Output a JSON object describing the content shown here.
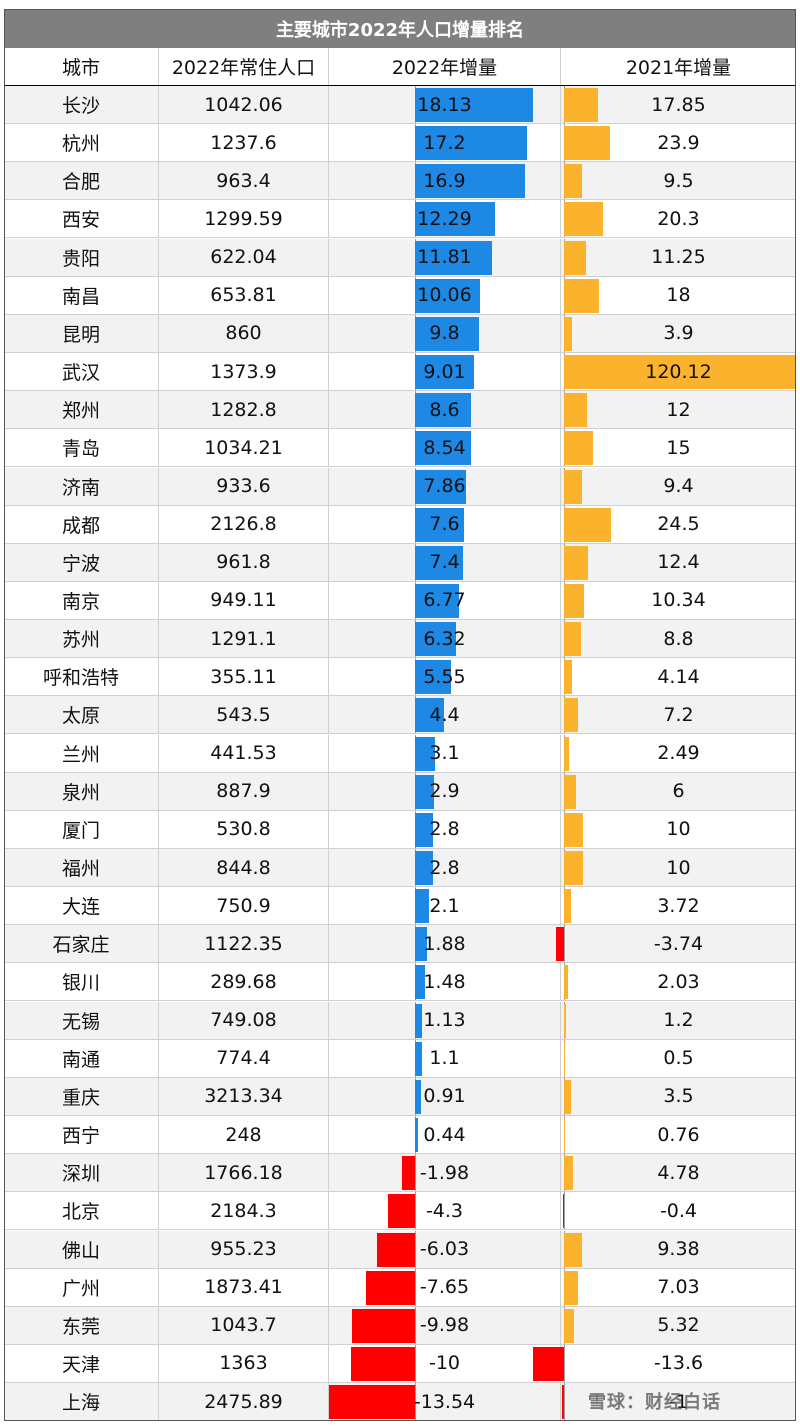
{
  "title": "主要城市2022年人口增量排名",
  "headers": {
    "city": "城市",
    "pop2022": "2022年常住人口",
    "g2022": "2022年增量",
    "g2021": "2021年增量"
  },
  "watermark": "雪球：财经白话",
  "colors": {
    "header_bg": "#7f7f7f",
    "positive_2022": "#1e88e5",
    "positive_2021": "#fbb22c",
    "negative": "#ff0000",
    "alt_row": "#f2f2f2"
  },
  "chart_data": {
    "type": "table",
    "title": "主要城市2022年人口增量排名",
    "columns": [
      "城市",
      "2022年常住人口",
      "2022年增量",
      "2021年增量"
    ],
    "rows": [
      {
        "city": "长沙",
        "pop2022": "1042.06",
        "g2022": "18.13",
        "g2021": "17.85"
      },
      {
        "city": "杭州",
        "pop2022": "1237.6",
        "g2022": "17.2",
        "g2021": "23.9"
      },
      {
        "city": "合肥",
        "pop2022": "963.4",
        "g2022": "16.9",
        "g2021": "9.5"
      },
      {
        "city": "西安",
        "pop2022": "1299.59",
        "g2022": "12.29",
        "g2021": "20.3"
      },
      {
        "city": "贵阳",
        "pop2022": "622.04",
        "g2022": "11.81",
        "g2021": "11.25"
      },
      {
        "city": "南昌",
        "pop2022": "653.81",
        "g2022": "10.06",
        "g2021": "18"
      },
      {
        "city": "昆明",
        "pop2022": "860",
        "g2022": "9.8",
        "g2021": "3.9"
      },
      {
        "city": "武汉",
        "pop2022": "1373.9",
        "g2022": "9.01",
        "g2021": "120.12"
      },
      {
        "city": "郑州",
        "pop2022": "1282.8",
        "g2022": "8.6",
        "g2021": "12"
      },
      {
        "city": "青岛",
        "pop2022": "1034.21",
        "g2022": "8.54",
        "g2021": "15"
      },
      {
        "city": "济南",
        "pop2022": "933.6",
        "g2022": "7.86",
        "g2021": "9.4"
      },
      {
        "city": "成都",
        "pop2022": "2126.8",
        "g2022": "7.6",
        "g2021": "24.5"
      },
      {
        "city": "宁波",
        "pop2022": "961.8",
        "g2022": "7.4",
        "g2021": "12.4"
      },
      {
        "city": "南京",
        "pop2022": "949.11",
        "g2022": "6.77",
        "g2021": "10.34"
      },
      {
        "city": "苏州",
        "pop2022": "1291.1",
        "g2022": "6.32",
        "g2021": "8.8"
      },
      {
        "city": "呼和浩特",
        "pop2022": "355.11",
        "g2022": "5.55",
        "g2021": "4.14"
      },
      {
        "city": "太原",
        "pop2022": "543.5",
        "g2022": "4.4",
        "g2021": "7.2"
      },
      {
        "city": "兰州",
        "pop2022": "441.53",
        "g2022": "3.1",
        "g2021": "2.49"
      },
      {
        "city": "泉州",
        "pop2022": "887.9",
        "g2022": "2.9",
        "g2021": "6"
      },
      {
        "city": "厦门",
        "pop2022": "530.8",
        "g2022": "2.8",
        "g2021": "10"
      },
      {
        "city": "福州",
        "pop2022": "844.8",
        "g2022": "2.8",
        "g2021": "10"
      },
      {
        "city": "大连",
        "pop2022": "750.9",
        "g2022": "2.1",
        "g2021": "3.72"
      },
      {
        "city": "石家庄",
        "pop2022": "1122.35",
        "g2022": "1.88",
        "g2021": "-3.74"
      },
      {
        "city": "银川",
        "pop2022": "289.68",
        "g2022": "1.48",
        "g2021": "2.03"
      },
      {
        "city": "无锡",
        "pop2022": "749.08",
        "g2022": "1.13",
        "g2021": "1.2"
      },
      {
        "city": "南通",
        "pop2022": "774.4",
        "g2022": "1.1",
        "g2021": "0.5"
      },
      {
        "city": "重庆",
        "pop2022": "3213.34",
        "g2022": "0.91",
        "g2021": "3.5"
      },
      {
        "city": "西宁",
        "pop2022": "248",
        "g2022": "0.44",
        "g2021": "0.76"
      },
      {
        "city": "深圳",
        "pop2022": "1766.18",
        "g2022": "-1.98",
        "g2021": "4.78"
      },
      {
        "city": "北京",
        "pop2022": "2184.3",
        "g2022": "-4.3",
        "g2021": "-0.4"
      },
      {
        "city": "佛山",
        "pop2022": "955.23",
        "g2022": "-6.03",
        "g2021": "9.38"
      },
      {
        "city": "广州",
        "pop2022": "1873.41",
        "g2022": "-7.65",
        "g2021": "7.03"
      },
      {
        "city": "东莞",
        "pop2022": "1043.7",
        "g2022": "-9.98",
        "g2021": "5.32"
      },
      {
        "city": "天津",
        "pop2022": "1363",
        "g2022": "-10",
        "g2021": "-13.6"
      },
      {
        "city": "上海",
        "pop2022": "2475.89",
        "g2022": "-13.54",
        "g2021": "-1"
      }
    ]
  }
}
